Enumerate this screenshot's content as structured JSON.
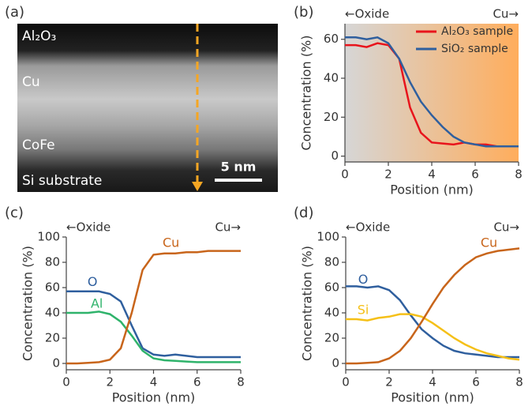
{
  "figure_a": {
    "panel_label": "(a)",
    "labels": [
      "Al₂O₃",
      "Cu",
      "CoFe",
      "Si substrate"
    ],
    "scale_bar": "5 nm"
  },
  "chart_data": [
    {
      "type": "line",
      "panel_label": "(b)",
      "xlabel": "Position (nm)",
      "ylabel": "Concentration (%)",
      "annotations": [
        "←Oxide",
        "Cu→"
      ],
      "x": [
        0,
        0.5,
        1,
        1.5,
        2,
        2.5,
        3,
        3.5,
        4,
        4.5,
        5,
        5.5,
        6,
        6.5,
        7,
        7.5,
        8
      ],
      "series": [
        {
          "name": "Al₂O₃ sample",
          "color": "#e8141c",
          "values": [
            57,
            57,
            56,
            58,
            57,
            50,
            25,
            12,
            7,
            6.5,
            6,
            7,
            6,
            6,
            5,
            5,
            5
          ]
        },
        {
          "name": "SiO₂ sample",
          "color": "#2f5f9e",
          "values": [
            61,
            61,
            60,
            61,
            58,
            50,
            38,
            28,
            21,
            15,
            10,
            7,
            6,
            5,
            5,
            5,
            5
          ]
        }
      ],
      "xlim": [
        0,
        8
      ],
      "xticks": [
        0,
        2,
        4,
        6,
        8
      ],
      "ylim": [
        -3,
        68
      ],
      "yticks": [
        0,
        20,
        40,
        60
      ],
      "legend": "upper right"
    },
    {
      "type": "line",
      "panel_label": "(c)",
      "xlabel": "Position (nm)",
      "ylabel": "Concentration (%)",
      "annotations": [
        "←Oxide",
        "Cu→"
      ],
      "x": [
        0,
        0.5,
        1,
        1.5,
        2,
        2.5,
        3,
        3.5,
        4,
        4.5,
        5,
        5.5,
        6,
        6.5,
        7,
        7.5,
        8
      ],
      "series": [
        {
          "name": "O",
          "color": "#2f5f9e",
          "values": [
            57,
            57,
            57,
            57,
            55,
            49,
            30,
            12,
            7,
            6,
            7,
            6,
            5,
            5,
            5,
            5,
            5
          ]
        },
        {
          "name": "Al",
          "color": "#2fb36b",
          "values": [
            40,
            40,
            40,
            41,
            39,
            33,
            22,
            10,
            4,
            2.5,
            2,
            1.5,
            1,
            1,
            1,
            1,
            1
          ]
        },
        {
          "name": "Cu",
          "color": "#c8651b",
          "values": [
            0,
            0,
            0.5,
            1,
            3,
            12,
            40,
            74,
            86,
            87,
            87,
            88,
            88,
            89,
            89,
            89,
            89
          ]
        }
      ],
      "xlim": [
        0,
        8
      ],
      "xticks": [
        0,
        2,
        4,
        6,
        8
      ],
      "ylim": [
        -5,
        100
      ],
      "yticks": [
        0,
        20,
        40,
        60,
        80,
        100
      ]
    },
    {
      "type": "line",
      "panel_label": "(d)",
      "xlabel": "Position (nm)",
      "ylabel": "Concentration (%)",
      "annotations": [
        "←Oxide",
        "Cu→"
      ],
      "x": [
        0,
        0.5,
        1,
        1.5,
        2,
        2.5,
        3,
        3.5,
        4,
        4.5,
        5,
        5.5,
        6,
        6.5,
        7,
        7.5,
        8
      ],
      "series": [
        {
          "name": "O",
          "color": "#2f5f9e",
          "values": [
            61,
            61,
            60,
            61,
            58,
            50,
            38,
            27,
            20,
            14,
            10,
            8,
            7,
            6,
            5,
            5,
            5
          ]
        },
        {
          "name": "Si",
          "color": "#f5c018",
          "values": [
            35,
            35,
            34,
            36,
            37,
            39,
            39,
            37,
            32,
            26,
            20,
            15,
            11,
            8,
            6,
            4,
            3
          ]
        },
        {
          "name": "Cu",
          "color": "#c8651b",
          "values": [
            0,
            0,
            0.5,
            1,
            4,
            10,
            20,
            33,
            47,
            60,
            70,
            78,
            84,
            87,
            89,
            90,
            91
          ]
        }
      ],
      "xlim": [
        0,
        8
      ],
      "xticks": [
        0,
        2,
        4,
        6,
        8
      ],
      "ylim": [
        -5,
        100
      ],
      "yticks": [
        0,
        20,
        40,
        60,
        80,
        100
      ]
    }
  ]
}
